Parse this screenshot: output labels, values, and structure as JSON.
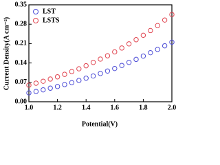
{
  "chart_data": {
    "type": "scatter",
    "x_label": "Potential(V)",
    "y_label": "Current Density(A cm⁻²)",
    "x": [
      1.0,
      1.05,
      1.1,
      1.15,
      1.2,
      1.25,
      1.3,
      1.35,
      1.4,
      1.45,
      1.5,
      1.55,
      1.6,
      1.65,
      1.7,
      1.75,
      1.8,
      1.85,
      1.9,
      1.95,
      2.0
    ],
    "series": [
      {
        "name": "LST",
        "color": "#4b4bd6",
        "values": [
          0.032,
          0.037,
          0.043,
          0.049,
          0.055,
          0.062,
          0.069,
          0.077,
          0.085,
          0.093,
          0.102,
          0.111,
          0.12,
          0.131,
          0.142,
          0.153,
          0.165,
          0.177,
          0.189,
          0.202,
          0.215
        ]
      },
      {
        "name": "LSTS",
        "color": "#e0444f",
        "values": [
          0.06,
          0.067,
          0.074,
          0.082,
          0.09,
          0.099,
          0.109,
          0.119,
          0.13,
          0.142,
          0.154,
          0.166,
          0.18,
          0.194,
          0.209,
          0.224,
          0.24,
          0.257,
          0.275,
          0.295,
          0.315
        ]
      }
    ],
    "xlim": [
      1.0,
      2.0
    ],
    "xticks": [
      {
        "value": 1.0,
        "label": "1.0"
      },
      1.2,
      1.4,
      1.6,
      1.8,
      {
        "value": 2.0,
        "label": "2.0"
      }
    ],
    "ylim": [
      0,
      0.35
    ],
    "yticks": [
      {
        "value": 0,
        "label": "0.00"
      },
      0.07,
      0.14,
      0.21,
      0.28,
      0.35
    ],
    "legend": "upper left"
  }
}
